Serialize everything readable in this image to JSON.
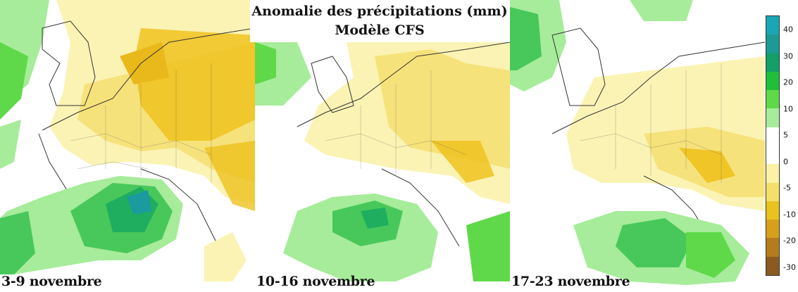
{
  "title": {
    "line1": "Anomalie des précipitations (mm)",
    "line2": "Modèle CFS"
  },
  "panels": [
    {
      "period": "3-9 novembre"
    },
    {
      "period": "10-16 novembre"
    },
    {
      "period": "17-23 novembre"
    }
  ],
  "legend": {
    "ticks": [
      "40",
      "30",
      "20",
      "10",
      "5",
      "0",
      "-5",
      "-10",
      "-20",
      "-30"
    ],
    "colors": [
      "#1aa7b5",
      "#1c9a95",
      "#12a067",
      "#1fbf3c",
      "#5fd94a",
      "#a6ec9a",
      "#ffffff",
      "#ffffff",
      "#fbf2a6",
      "#f4df6a",
      "#e9c21d",
      "#d7a01a",
      "#b57c1e",
      "#8a5a20"
    ]
  },
  "colors": {
    "land_border": "#333333",
    "strong_dry": "#eec21e",
    "dry": "#f6e27a",
    "light_dry": "#fbf3b4",
    "wet": "#48c85a",
    "very_wet": "#1ba79a"
  }
}
